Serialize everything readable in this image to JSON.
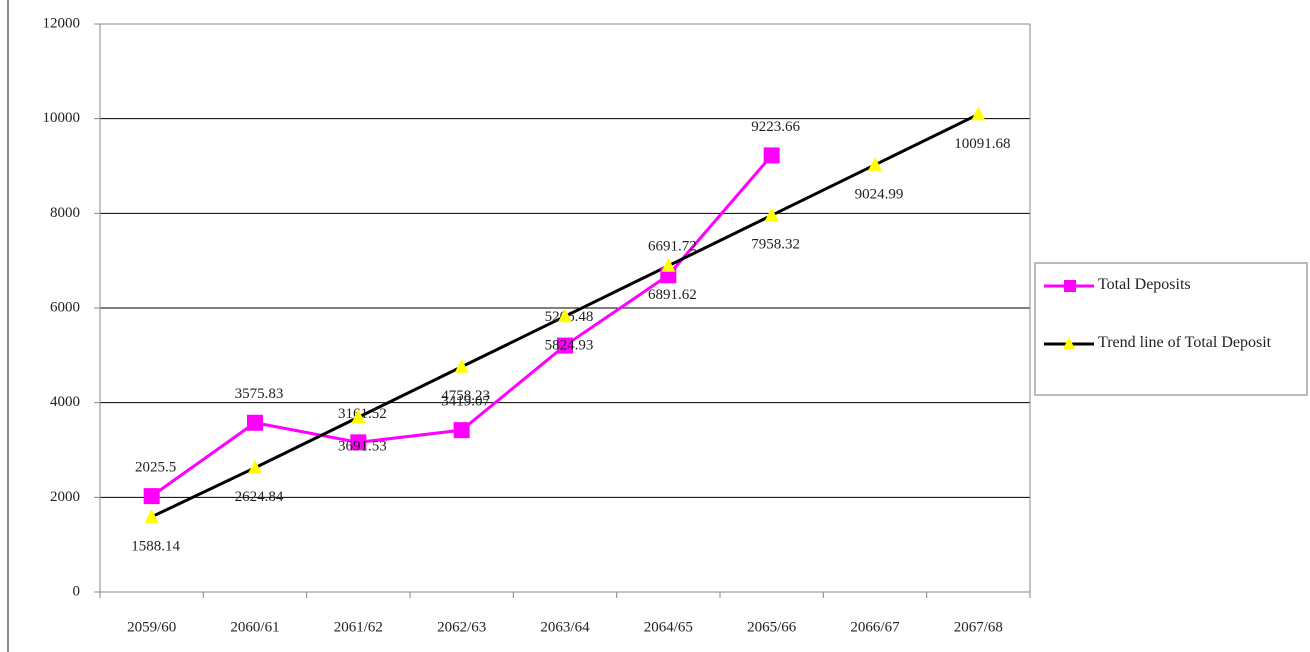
{
  "chart_data": {
    "type": "line",
    "categories": [
      "2059/60",
      "2060/61",
      "2061/62",
      "2062/63",
      "2063/64",
      "2064/65",
      "2065/66",
      "2066/67",
      "2067/68"
    ],
    "series": [
      {
        "name": "Total Deposits",
        "color": "#ff00ff",
        "marker": "square",
        "marker_color": "#ff00ff",
        "values": [
          2025.5,
          3575.83,
          3161.52,
          3419.07,
          5206.48,
          6691.72,
          9223.66,
          null,
          null
        ]
      },
      {
        "name": "Trend line of Total Deposit",
        "color": "#000000",
        "marker": "triangle",
        "marker_color": "#ffff00",
        "values": [
          1588.14,
          2624.84,
          3691.53,
          4758.23,
          5824.93,
          6891.62,
          7958.32,
          9024.99,
          10091.68
        ]
      }
    ],
    "ylim": [
      0,
      12000
    ],
    "yticks": [
      0,
      2000,
      4000,
      6000,
      8000,
      10000,
      12000
    ],
    "grid": true,
    "legend": "right"
  }
}
